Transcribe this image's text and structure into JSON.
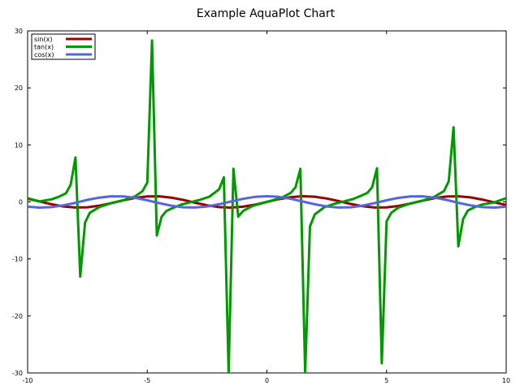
{
  "chart_data": {
    "type": "line",
    "title": "Example AquaPlot Chart",
    "xlabel": "",
    "ylabel": "",
    "xlim": [
      -10,
      10
    ],
    "ylim": [
      -30,
      30
    ],
    "xticks": [
      -10,
      -5,
      0,
      5,
      10
    ],
    "yticks": [
      -30,
      -20,
      -10,
      0,
      10,
      20,
      30
    ],
    "grid": false,
    "legend_position": "top-left",
    "series": [
      {
        "name": "sin(x)",
        "color": "#990000",
        "x": [
          -10,
          -9.5,
          -9,
          -8.5,
          -8,
          -7.5,
          -7,
          -6.5,
          -6,
          -5.5,
          -5,
          -4.5,
          -4,
          -3.5,
          -3,
          -2.5,
          -2,
          -1.5,
          -1,
          -0.5,
          0,
          0.5,
          1,
          1.5,
          2,
          2.5,
          3,
          3.5,
          4,
          4.5,
          5,
          5.5,
          6,
          6.5,
          7,
          7.5,
          8,
          8.5,
          9,
          9.5,
          10
        ],
        "y": [
          0.54,
          0.08,
          -0.41,
          -0.8,
          -0.99,
          -0.94,
          -0.66,
          -0.22,
          0.28,
          0.71,
          0.96,
          0.98,
          0.76,
          0.35,
          -0.14,
          -0.6,
          -0.91,
          -1.0,
          -0.84,
          -0.48,
          0,
          0.48,
          0.84,
          1.0,
          0.91,
          0.6,
          0.14,
          -0.35,
          -0.76,
          -0.98,
          -0.96,
          -0.71,
          -0.28,
          0.22,
          0.66,
          0.94,
          0.99,
          0.8,
          0.41,
          -0.08,
          -0.54
        ]
      },
      {
        "name": "tan(x)",
        "color": "#009900",
        "x": [
          -10,
          -9.5,
          -9,
          -8.7,
          -8.4,
          -8.2,
          -8.0,
          -7.8,
          -7.6,
          -7.4,
          -7.0,
          -6.5,
          -6.0,
          -5.5,
          -5.2,
          -5.0,
          -4.8,
          -4.6,
          -4.4,
          -4.2,
          -4.0,
          -3.6,
          -3.2,
          -2.8,
          -2.4,
          -2.0,
          -1.8,
          -1.6,
          -1.4,
          -1.2,
          -1.0,
          -0.6,
          0,
          0.6,
          1.0,
          1.2,
          1.4,
          1.6,
          1.8,
          2.0,
          2.4,
          2.8,
          3.2,
          3.6,
          4.0,
          4.2,
          4.4,
          4.6,
          4.8,
          5.0,
          5.2,
          5.5,
          6.0,
          6.5,
          7.0,
          7.4,
          7.6,
          7.8,
          8.0,
          8.2,
          8.4,
          8.7,
          9.0,
          9.5,
          10
        ],
        "y": [
          0.65,
          0.08,
          0.45,
          0.9,
          1.5,
          3.0,
          7.8,
          -13.1,
          -3.6,
          -1.9,
          -0.9,
          -0.22,
          0.29,
          0.99,
          1.9,
          3.4,
          28.3,
          -5.9,
          -2.6,
          -1.6,
          -1.2,
          -0.5,
          -0.06,
          0.36,
          0.92,
          2.2,
          4.3,
          -34.2,
          5.8,
          -2.6,
          -1.6,
          -0.7,
          0,
          0.7,
          1.6,
          2.6,
          5.8,
          -34.2,
          -4.3,
          -2.2,
          -0.92,
          -0.36,
          0.06,
          0.5,
          1.2,
          1.6,
          2.6,
          5.9,
          -28.3,
          -3.4,
          -1.9,
          -0.99,
          -0.29,
          0.22,
          0.9,
          1.9,
          3.6,
          13.1,
          -7.8,
          -3.0,
          -1.5,
          -0.9,
          -0.45,
          -0.08,
          0.65
        ]
      },
      {
        "name": "cos(x)",
        "color": "#5566dd",
        "x": [
          -10,
          -9.5,
          -9,
          -8.5,
          -8,
          -7.5,
          -7,
          -6.5,
          -6,
          -5.5,
          -5,
          -4.5,
          -4,
          -3.5,
          -3,
          -2.5,
          -2,
          -1.5,
          -1,
          -0.5,
          0,
          0.5,
          1,
          1.5,
          2,
          2.5,
          3,
          3.5,
          4,
          4.5,
          5,
          5.5,
          6,
          6.5,
          7,
          7.5,
          8,
          8.5,
          9,
          9.5,
          10
        ],
        "y": [
          -0.84,
          -1.0,
          -0.91,
          -0.6,
          -0.15,
          0.35,
          0.75,
          0.98,
          0.96,
          0.71,
          0.28,
          -0.21,
          -0.65,
          -0.94,
          -0.99,
          -0.8,
          -0.42,
          0.07,
          0.54,
          0.88,
          1.0,
          0.88,
          0.54,
          0.07,
          -0.42,
          -0.8,
          -0.99,
          -0.94,
          -0.65,
          -0.21,
          0.28,
          0.71,
          0.96,
          0.98,
          0.75,
          0.35,
          -0.15,
          -0.6,
          -0.91,
          -1.0,
          -0.84
        ]
      }
    ]
  }
}
